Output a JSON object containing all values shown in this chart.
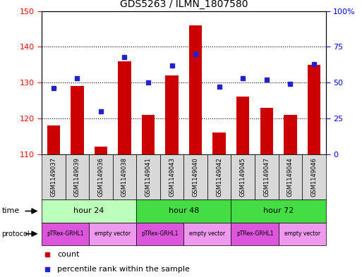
{
  "title": "GDS5263 / ILMN_1807580",
  "samples": [
    "GSM1149037",
    "GSM1149039",
    "GSM1149036",
    "GSM1149038",
    "GSM1149041",
    "GSM1149043",
    "GSM1149040",
    "GSM1149042",
    "GSM1149045",
    "GSM1149047",
    "GSM1149044",
    "GSM1149046"
  ],
  "counts": [
    118,
    129,
    112,
    136,
    121,
    132,
    146,
    116,
    126,
    123,
    121,
    135
  ],
  "percentiles": [
    46,
    53,
    30,
    68,
    50,
    62,
    70,
    47,
    53,
    52,
    49,
    63
  ],
  "ylim_left": [
    110,
    150
  ],
  "ylim_right": [
    0,
    100
  ],
  "yticks_left": [
    110,
    120,
    130,
    140,
    150
  ],
  "yticks_right": [
    0,
    25,
    50,
    75,
    100
  ],
  "bar_color": "#cc0000",
  "dot_color": "#2222cc",
  "time_groups": [
    {
      "label": "hour 24",
      "start": 0,
      "end": 4,
      "color": "#bbffbb"
    },
    {
      "label": "hour 48",
      "start": 4,
      "end": 8,
      "color": "#44dd44"
    },
    {
      "label": "hour 72",
      "start": 8,
      "end": 12,
      "color": "#44dd44"
    }
  ],
  "protocol_groups": [
    {
      "label": "pTRex-GRHL1",
      "start": 0,
      "end": 2,
      "color": "#dd66dd"
    },
    {
      "label": "empty vector",
      "start": 2,
      "end": 4,
      "color": "#ee99ee"
    },
    {
      "label": "pTRex-GRHL1",
      "start": 4,
      "end": 6,
      "color": "#dd66dd"
    },
    {
      "label": "empty vector",
      "start": 6,
      "end": 8,
      "color": "#ee99ee"
    },
    {
      "label": "pTRex-GRHL1",
      "start": 8,
      "end": 10,
      "color": "#dd66dd"
    },
    {
      "label": "empty vector",
      "start": 10,
      "end": 12,
      "color": "#ee99ee"
    }
  ],
  "legend_items": [
    {
      "label": "count",
      "color": "#cc0000"
    },
    {
      "label": "percentile rank within the sample",
      "color": "#2222cc"
    }
  ],
  "fig_width": 5.13,
  "fig_height": 3.93,
  "dpi": 100
}
